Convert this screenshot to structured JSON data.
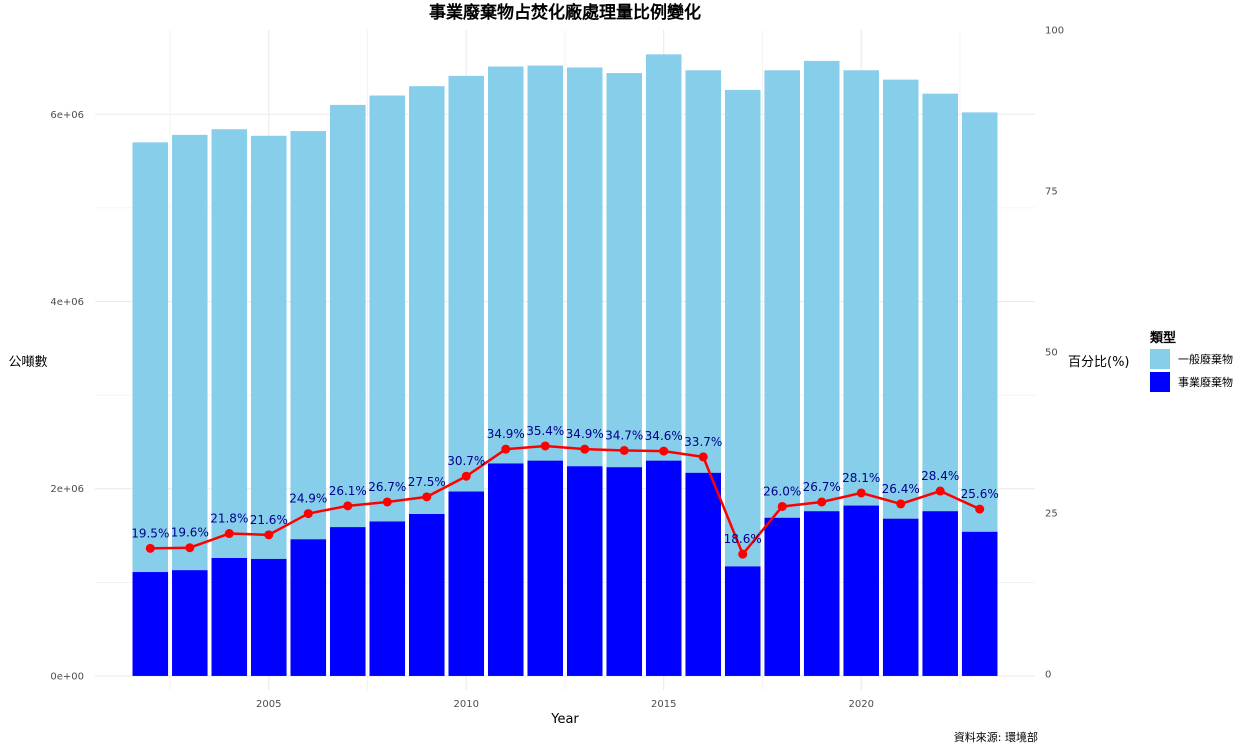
{
  "chart_data": {
    "type": "bar",
    "title": "事業廢棄物占焚化廠處理量比例變化",
    "xlabel": "Year",
    "ylabel": "公噸數",
    "y2label": "百分比(%)",
    "caption": "資料來源: 環境部",
    "x": [
      2002,
      2003,
      2004,
      2005,
      2006,
      2007,
      2008,
      2009,
      2010,
      2011,
      2012,
      2013,
      2014,
      2015,
      2016,
      2017,
      2018,
      2019,
      2020,
      2021,
      2022,
      2023
    ],
    "x_ticks": [
      2005,
      2010,
      2015,
      2020
    ],
    "x_tick_labels": [
      "2005",
      "2010",
      "2015",
      "2020"
    ],
    "y_ticks": [
      0,
      2000000,
      4000000,
      6000000
    ],
    "y_tick_labels": [
      "0e+00",
      "2e+06",
      "4e+06",
      "6e+06"
    ],
    "y2_ticks": [
      0,
      25,
      50,
      75,
      100
    ],
    "y2_tick_labels": [
      "0",
      "25",
      "50",
      "75",
      "100"
    ],
    "xlim": [
      2000.6,
      2024.4
    ],
    "ylim": [
      -150000,
      6900000
    ],
    "y2lim": [
      -2.5,
      100
    ],
    "grid": true,
    "legend": {
      "title": "類型",
      "position": "right",
      "entries": [
        {
          "label": "一般廢棄物",
          "color": "#87CEEB"
        },
        {
          "label": "事業廢棄物",
          "color": "#0000FF"
        }
      ]
    },
    "series": [
      {
        "name": "一般廢棄物",
        "kind": "stacked-bar",
        "color": "#87CEEB",
        "values": [
          4590000,
          4650000,
          4580000,
          4520000,
          4360000,
          4510000,
          4550000,
          4570000,
          4440000,
          4240000,
          4220000,
          4260000,
          4210000,
          4340000,
          4300000,
          5090000,
          4780000,
          4810000,
          4650000,
          4690000,
          4460000,
          4480000
        ]
      },
      {
        "name": "事業廢棄物",
        "kind": "stacked-bar",
        "color": "#0000FF",
        "values": [
          1110000,
          1130000,
          1260000,
          1250000,
          1460000,
          1590000,
          1650000,
          1730000,
          1970000,
          2270000,
          2300000,
          2240000,
          2230000,
          2300000,
          2170000,
          1170000,
          1690000,
          1760000,
          1820000,
          1680000,
          1760000,
          1540000
        ]
      },
      {
        "name": "",
        "kind": "line-secondary",
        "color": "#FF0000",
        "values": [
          19.5,
          19.6,
          21.8,
          21.6,
          24.9,
          26.1,
          26.7,
          27.5,
          30.7,
          34.9,
          35.4,
          34.9,
          34.7,
          34.6,
          33.7,
          18.6,
          26.0,
          26.7,
          28.1,
          26.4,
          28.4,
          25.6
        ],
        "labels": [
          "19.5%",
          "19.6%",
          "21.8%",
          "21.6%",
          "24.9%",
          "26.1%",
          "26.7%",
          "27.5%",
          "30.7%",
          "34.9%",
          "35.4%",
          "34.9%",
          "34.7%",
          "34.6%",
          "33.7%",
          "18.6%",
          "26.0%",
          "26.7%",
          "28.1%",
          "26.4%",
          "28.4%",
          "25.6%"
        ]
      }
    ],
    "colors": {
      "general": "#87CEEB",
      "industrial": "#0000FF",
      "line": "#FF0000",
      "label": "#00008B",
      "grid": "#EBEBEB"
    }
  }
}
